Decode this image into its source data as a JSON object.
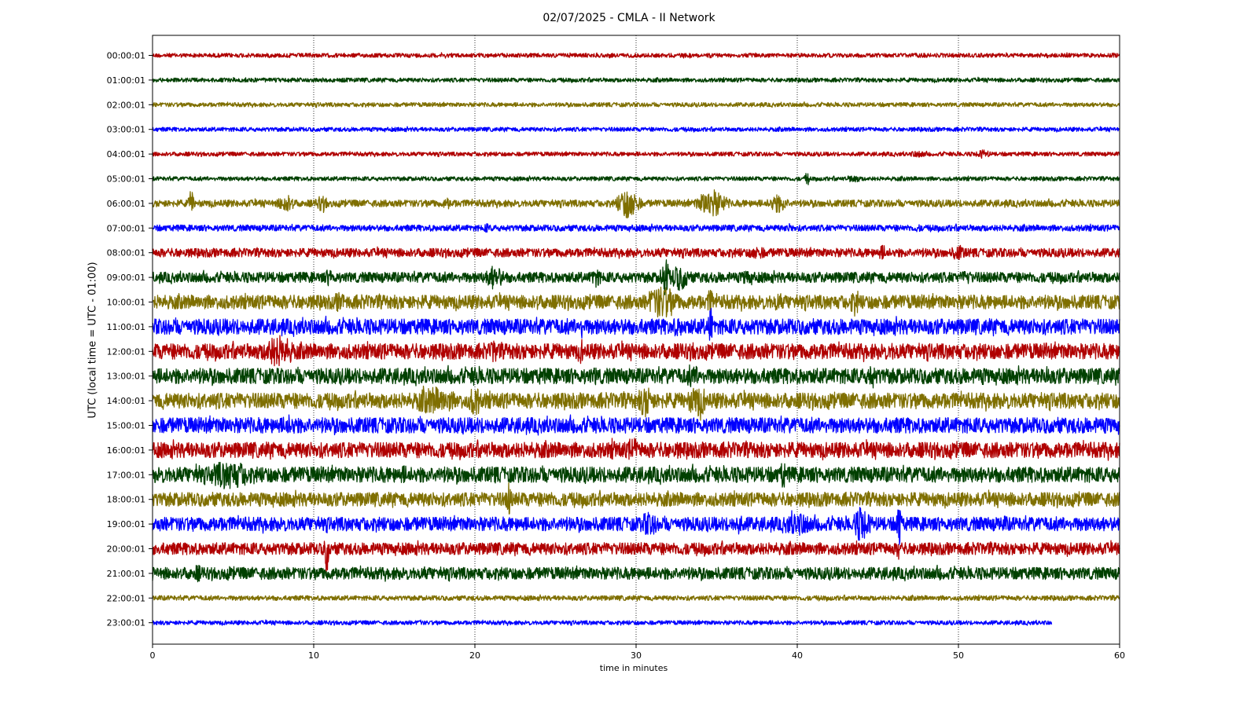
{
  "chart_data": {
    "type": "line",
    "title": "02/07/2025 - CMLA - II Network",
    "xlabel": "time in minutes",
    "ylabel": "UTC (local time = UTC - 01:00)",
    "xlim": [
      0,
      60
    ],
    "x_ticks": [
      0,
      10,
      20,
      30,
      40,
      50,
      60
    ],
    "grid": "vertical dotted lines at x ticks",
    "colors": [
      "#b00000",
      "#004000",
      "#7f6f00",
      "#0000ff"
    ],
    "series": [
      {
        "name": "00:00:01",
        "end_minute": 60,
        "amplitude": 0.12,
        "events": [
          {
            "x": 6.5,
            "amp": 0.15,
            "dur": 0.2
          }
        ]
      },
      {
        "name": "01:00:01",
        "end_minute": 60,
        "amplitude": 0.12,
        "events": []
      },
      {
        "name": "02:00:01",
        "end_minute": 60,
        "amplitude": 0.12,
        "events": []
      },
      {
        "name": "03:00:01",
        "end_minute": 60,
        "amplitude": 0.12,
        "events": []
      },
      {
        "name": "04:00:01",
        "end_minute": 60,
        "amplitude": 0.12,
        "events": [
          {
            "x": 47.5,
            "amp": 0.2,
            "dur": 1.5
          },
          {
            "x": 51.5,
            "amp": 0.25,
            "dur": 1.2
          }
        ]
      },
      {
        "name": "05:00:01",
        "end_minute": 60,
        "amplitude": 0.12,
        "events": [
          {
            "x": 40.6,
            "amp": 0.35,
            "dur": 0.4
          },
          {
            "x": 43.5,
            "amp": 0.25,
            "dur": 1.0
          }
        ]
      },
      {
        "name": "06:00:01",
        "end_minute": 60,
        "amplitude": 0.2,
        "events": [
          {
            "x": 2.4,
            "amp": 0.75,
            "dur": 0.4
          },
          {
            "x": 8.3,
            "amp": 0.55,
            "dur": 1.2
          },
          {
            "x": 10.5,
            "amp": 0.45,
            "dur": 1.0
          },
          {
            "x": 18.3,
            "amp": 0.35,
            "dur": 0.8
          },
          {
            "x": 29.5,
            "amp": 0.9,
            "dur": 1.5
          },
          {
            "x": 34.7,
            "amp": 0.8,
            "dur": 2.0
          },
          {
            "x": 38.8,
            "amp": 0.55,
            "dur": 1.4
          }
        ]
      },
      {
        "name": "07:00:01",
        "end_minute": 60,
        "amplitude": 0.18,
        "events": [
          {
            "x": 20.7,
            "amp": 0.3,
            "dur": 0.4
          },
          {
            "x": 39.6,
            "amp": 0.3,
            "dur": 0.5
          },
          {
            "x": 47.5,
            "amp": 0.3,
            "dur": 0.3
          }
        ]
      },
      {
        "name": "08:00:01",
        "end_minute": 60,
        "amplitude": 0.25,
        "events": [
          {
            "x": 31.6,
            "amp": 0.3,
            "dur": 0.6
          },
          {
            "x": 37.5,
            "amp": 0.4,
            "dur": 1.5
          },
          {
            "x": 45.3,
            "amp": 0.45,
            "dur": 0.8
          },
          {
            "x": 50,
            "amp": 0.45,
            "dur": 1.2
          }
        ]
      },
      {
        "name": "09:00:01",
        "end_minute": 60,
        "amplitude": 0.3,
        "events": [
          {
            "x": 11,
            "amp": 0.5,
            "dur": 1.0
          },
          {
            "x": 21.2,
            "amp": 0.7,
            "dur": 1.4
          },
          {
            "x": 27.5,
            "amp": 0.6,
            "dur": 0.8
          },
          {
            "x": 31.8,
            "amp": 1.1,
            "dur": 0.6
          },
          {
            "x": 32.7,
            "amp": 0.75,
            "dur": 1.5
          },
          {
            "x": 36.9,
            "amp": 0.5,
            "dur": 1.0
          },
          {
            "x": 50.5,
            "amp": 0.45,
            "dur": 1.0
          }
        ]
      },
      {
        "name": "10:00:01",
        "end_minute": 60,
        "amplitude": 0.4,
        "events": [
          {
            "x": 11.6,
            "amp": 0.6,
            "dur": 1.0
          },
          {
            "x": 23.9,
            "amp": 0.5,
            "dur": 0.6
          },
          {
            "x": 31.6,
            "amp": 0.95,
            "dur": 2.4
          },
          {
            "x": 34.6,
            "amp": 0.75,
            "dur": 0.5
          },
          {
            "x": 38.8,
            "amp": 0.55,
            "dur": 1.2
          },
          {
            "x": 43.6,
            "amp": 0.7,
            "dur": 1.0
          }
        ]
      },
      {
        "name": "11:00:01",
        "end_minute": 60,
        "amplitude": 0.45,
        "events": [
          {
            "x": 21.2,
            "amp": 0.5,
            "dur": 0.4
          },
          {
            "x": 26.6,
            "amp": 0.75,
            "dur": 0.3
          },
          {
            "x": 32.6,
            "amp": 0.55,
            "dur": 2.0
          },
          {
            "x": 34.6,
            "amp": 1.35,
            "dur": 0.3
          },
          {
            "x": 37.5,
            "amp": 0.5,
            "dur": 1.0
          }
        ]
      },
      {
        "name": "12:00:01",
        "end_minute": 60,
        "amplitude": 0.45,
        "events": [
          {
            "x": 7.8,
            "amp": 0.95,
            "dur": 2.4
          },
          {
            "x": 21.2,
            "amp": 0.8,
            "dur": 0.6
          },
          {
            "x": 26.6,
            "amp": 0.75,
            "dur": 0.3
          },
          {
            "x": 33.6,
            "amp": 0.55,
            "dur": 0.8
          },
          {
            "x": 46,
            "amp": 0.55,
            "dur": 1.0
          },
          {
            "x": 53,
            "amp": 0.45,
            "dur": 0.8
          },
          {
            "x": 55.5,
            "amp": 0.5,
            "dur": 1.0
          }
        ]
      },
      {
        "name": "13:00:01",
        "end_minute": 60,
        "amplitude": 0.45,
        "events": [
          {
            "x": 20,
            "amp": 0.55,
            "dur": 1.4
          },
          {
            "x": 24,
            "amp": 0.5,
            "dur": 0.8
          },
          {
            "x": 27.5,
            "amp": 0.6,
            "dur": 0.5
          },
          {
            "x": 33.5,
            "amp": 0.65,
            "dur": 1.5
          },
          {
            "x": 44.6,
            "amp": 0.9,
            "dur": 0.5
          },
          {
            "x": 51.5,
            "amp": 0.5,
            "dur": 1.0
          },
          {
            "x": 55.4,
            "amp": 0.65,
            "dur": 0.7
          }
        ]
      },
      {
        "name": "14:00:01",
        "end_minute": 60,
        "amplitude": 0.45,
        "events": [
          {
            "x": 4,
            "amp": 0.5,
            "dur": 1.0
          },
          {
            "x": 17.5,
            "amp": 0.8,
            "dur": 3.5
          },
          {
            "x": 20,
            "amp": 1.0,
            "dur": 0.8
          },
          {
            "x": 30.6,
            "amp": 0.95,
            "dur": 1.2
          },
          {
            "x": 33.8,
            "amp": 0.95,
            "dur": 1.5
          }
        ]
      },
      {
        "name": "15:00:01",
        "end_minute": 60,
        "amplitude": 0.45,
        "events": [
          {
            "x": 8.5,
            "amp": 0.65,
            "dur": 1.5
          },
          {
            "x": 17.6,
            "amp": 0.45,
            "dur": 1.0
          },
          {
            "x": 46.3,
            "amp": 0.5,
            "dur": 0.8
          }
        ]
      },
      {
        "name": "16:00:01",
        "end_minute": 60,
        "amplitude": 0.45,
        "events": [
          {
            "x": 28.6,
            "amp": 0.55,
            "dur": 1.0
          },
          {
            "x": 29.8,
            "amp": 0.8,
            "dur": 0.8
          },
          {
            "x": 32.5,
            "amp": 0.5,
            "dur": 1.0
          },
          {
            "x": 46.3,
            "amp": 0.45,
            "dur": 0.8
          }
        ]
      },
      {
        "name": "17:00:01",
        "end_minute": 60,
        "amplitude": 0.45,
        "events": [
          {
            "x": 2.8,
            "amp": 0.65,
            "dur": 0.6
          },
          {
            "x": 4.8,
            "amp": 0.85,
            "dur": 3.5
          },
          {
            "x": 15.6,
            "amp": 0.55,
            "dur": 1.0
          },
          {
            "x": 21.2,
            "amp": 0.5,
            "dur": 1.0
          },
          {
            "x": 39.1,
            "amp": 0.95,
            "dur": 0.4
          }
        ]
      },
      {
        "name": "18:00:01",
        "end_minute": 60,
        "amplitude": 0.4,
        "events": [
          {
            "x": 22.1,
            "amp": 1.0,
            "dur": 0.4
          },
          {
            "x": 24.6,
            "amp": 0.5,
            "dur": 0.8
          }
        ]
      },
      {
        "name": "19:00:01",
        "end_minute": 60,
        "amplitude": 0.4,
        "events": [
          {
            "x": 30.8,
            "amp": 0.7,
            "dur": 1.5
          },
          {
            "x": 36.3,
            "amp": 0.6,
            "dur": 1.2
          },
          {
            "x": 40,
            "amp": 0.7,
            "dur": 2.5
          },
          {
            "x": 44,
            "amp": 1.05,
            "dur": 1.2
          },
          {
            "x": 46.3,
            "amp": 1.35,
            "dur": 0.4
          },
          {
            "x": 52.8,
            "amp": 0.5,
            "dur": 1.0
          }
        ]
      },
      {
        "name": "20:00:01",
        "end_minute": 60,
        "amplitude": 0.35,
        "events": [
          {
            "x": 2.5,
            "amp": 0.4,
            "dur": 0.8
          },
          {
            "x": 10.8,
            "amp": 1.5,
            "dur": 0.3
          },
          {
            "x": 46.3,
            "amp": 0.75,
            "dur": 0.3
          },
          {
            "x": 47.3,
            "amp": 0.4,
            "dur": 0.6
          }
        ]
      },
      {
        "name": "21:00:01",
        "end_minute": 60,
        "amplitude": 0.35,
        "events": [
          {
            "x": 2.8,
            "amp": 0.5,
            "dur": 0.8
          },
          {
            "x": 4.8,
            "amp": 0.45,
            "dur": 0.3
          },
          {
            "x": 16.9,
            "amp": 0.4,
            "dur": 0.8
          },
          {
            "x": 48.8,
            "amp": 0.4,
            "dur": 0.6
          }
        ]
      },
      {
        "name": "22:00:01",
        "end_minute": 60,
        "amplitude": 0.14,
        "events": []
      },
      {
        "name": "23:00:01",
        "end_minute": 55.8,
        "amplitude": 0.12,
        "events": [
          {
            "x": 16.6,
            "amp": 0.2,
            "dur": 0.3
          }
        ]
      }
    ]
  }
}
